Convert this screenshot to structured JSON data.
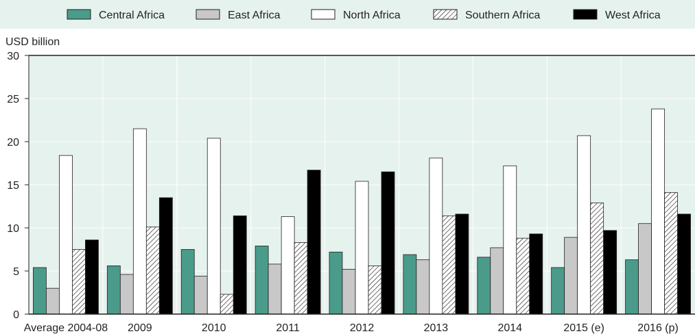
{
  "chart_data": {
    "type": "bar",
    "ylabel": "USD billion",
    "ylim": [
      0,
      30
    ],
    "yticks": [
      0,
      5,
      10,
      15,
      20,
      25,
      30
    ],
    "grid": true,
    "legend_position": "top",
    "categories": [
      "Average 2004-08",
      "2009",
      "2010",
      "2011",
      "2012",
      "2013",
      "2014",
      "2015 (e)",
      "2016 (p)"
    ],
    "series": [
      {
        "name": "Central Africa",
        "style": "teal",
        "color": "#4a9b8a",
        "values": [
          5.4,
          5.6,
          7.5,
          7.9,
          7.2,
          6.9,
          6.6,
          5.4,
          6.3
        ]
      },
      {
        "name": "East Africa",
        "style": "gray",
        "color": "#c8c8c8",
        "values": [
          3.0,
          4.6,
          4.4,
          5.8,
          5.2,
          6.3,
          7.7,
          8.9,
          10.5
        ]
      },
      {
        "name": "North Africa",
        "style": "white",
        "color": "#ffffff",
        "values": [
          18.4,
          21.5,
          20.4,
          11.3,
          15.4,
          18.1,
          17.2,
          20.7,
          23.8
        ]
      },
      {
        "name": "Southern Africa",
        "style": "hatch",
        "color": "#ffffff",
        "values": [
          7.5,
          10.1,
          2.3,
          8.3,
          5.6,
          11.4,
          8.8,
          12.9,
          14.1
        ]
      },
      {
        "name": "West Africa",
        "style": "black",
        "color": "#000000",
        "values": [
          8.6,
          13.5,
          11.4,
          16.7,
          16.5,
          11.6,
          9.3,
          9.7,
          11.6
        ]
      }
    ]
  },
  "colors": {
    "plot_background": "#e6f2ee",
    "grid": "#ffffff",
    "axis": "#231f20",
    "legend_background": "#e6f2ee"
  }
}
